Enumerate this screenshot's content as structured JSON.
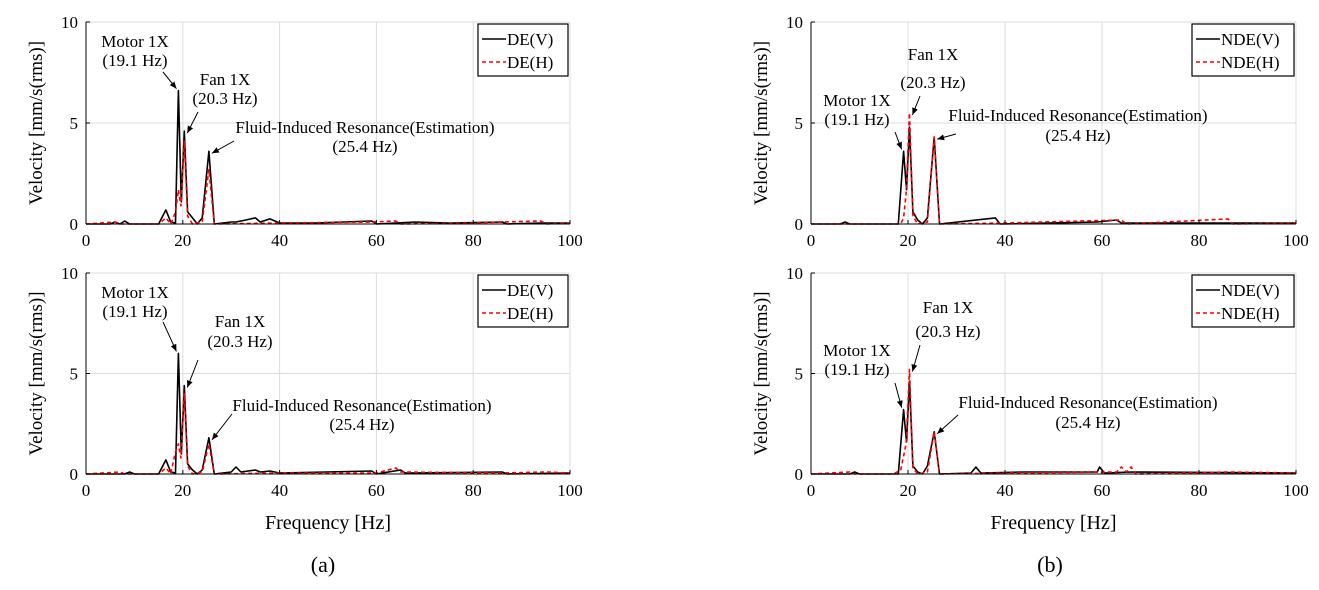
{
  "chart_data": [
    {
      "type": "line",
      "panel": "a-top",
      "xlabel": "",
      "ylabel": "Velocity [mm/s(rms)]",
      "xlim": [
        0,
        100
      ],
      "ylim": [
        0,
        10
      ],
      "xticks": [
        0,
        20,
        40,
        60,
        80,
        100
      ],
      "yticks": [
        0,
        5,
        10
      ],
      "grid": true,
      "legend_position": "top-right",
      "series": [
        {
          "name": "DE(V)",
          "color": "#000000",
          "style": "solid",
          "points": [
            [
              0,
              0
            ],
            [
              5,
              0
            ],
            [
              6,
              0.1
            ],
            [
              7,
              0
            ],
            [
              8,
              0.15
            ],
            [
              9,
              0
            ],
            [
              15,
              0
            ],
            [
              16.5,
              0.7
            ],
            [
              17.5,
              0.1
            ],
            [
              18.5,
              0.05
            ],
            [
              19.1,
              6.6
            ],
            [
              19.7,
              1.1
            ],
            [
              20.3,
              4.6
            ],
            [
              21,
              0.6
            ],
            [
              22,
              0.3
            ],
            [
              23,
              0
            ],
            [
              24,
              0.3
            ],
            [
              25.4,
              3.6
            ],
            [
              26.5,
              0
            ],
            [
              30,
              0.1
            ],
            [
              31,
              0.1
            ],
            [
              33,
              0.2
            ],
            [
              35,
              0.3
            ],
            [
              36,
              0.1
            ],
            [
              38,
              0.25
            ],
            [
              40,
              0.05
            ],
            [
              47,
              0.05
            ],
            [
              59,
              0.15
            ],
            [
              60,
              0
            ],
            [
              68,
              0.1
            ],
            [
              75,
              0.05
            ],
            [
              86,
              0.1
            ],
            [
              87,
              0
            ],
            [
              94,
              0.05
            ],
            [
              100,
              0.05
            ]
          ]
        },
        {
          "name": "DE(H)",
          "color": "#ff0000",
          "style": "dashed",
          "points": [
            [
              0,
              0
            ],
            [
              6,
              0.1
            ],
            [
              7,
              0
            ],
            [
              15,
              0
            ],
            [
              16.5,
              0.3
            ],
            [
              17.5,
              0
            ],
            [
              18.5,
              0.6
            ],
            [
              19.1,
              1.7
            ],
            [
              19.6,
              0.9
            ],
            [
              20.3,
              4.1
            ],
            [
              21,
              0.4
            ],
            [
              22,
              0
            ],
            [
              24,
              0.1
            ],
            [
              25.4,
              2.7
            ],
            [
              26.5,
              0
            ],
            [
              40,
              0.05
            ],
            [
              59,
              0.1
            ],
            [
              64,
              0.15
            ],
            [
              65,
              0
            ],
            [
              80,
              0.05
            ],
            [
              86,
              0.1
            ],
            [
              94,
              0.15
            ],
            [
              95,
              0
            ],
            [
              100,
              0.05
            ]
          ]
        }
      ],
      "annotations": [
        {
          "lines": [
            "Motor 1X",
            "(19.1 Hz)"
          ],
          "x": 19.1,
          "y": 6.6
        },
        {
          "lines": [
            "Fan 1X",
            "(20.3 Hz)"
          ],
          "x": 20.3,
          "y": 4.6
        },
        {
          "lines": [
            "Fluid-Induced Resonance(Estimation)",
            "(25.4 Hz)"
          ],
          "x": 25.4,
          "y": 3.6
        }
      ]
    },
    {
      "type": "line",
      "panel": "a-bottom",
      "xlabel": "Frequency [Hz]",
      "ylabel": "Velocity [mm/s(rms)]",
      "xlim": [
        0,
        100
      ],
      "ylim": [
        0,
        10
      ],
      "xticks": [
        0,
        20,
        40,
        60,
        80,
        100
      ],
      "yticks": [
        0,
        5,
        10
      ],
      "grid": true,
      "legend_position": "top-right",
      "series": [
        {
          "name": "DE(V)",
          "color": "#000000",
          "style": "solid",
          "points": [
            [
              0,
              0
            ],
            [
              8,
              0
            ],
            [
              9,
              0.1
            ],
            [
              10,
              0
            ],
            [
              15,
              0
            ],
            [
              16.5,
              0.7
            ],
            [
              17.5,
              0.1
            ],
            [
              18.5,
              0.05
            ],
            [
              19.1,
              6.0
            ],
            [
              19.7,
              1.0
            ],
            [
              20.3,
              4.4
            ],
            [
              21,
              0.5
            ],
            [
              22,
              0.2
            ],
            [
              23,
              0
            ],
            [
              24,
              0.2
            ],
            [
              25.4,
              1.8
            ],
            [
              26.5,
              0
            ],
            [
              30,
              0.1
            ],
            [
              31,
              0.35
            ],
            [
              32,
              0.1
            ],
            [
              35,
              0.2
            ],
            [
              36,
              0.1
            ],
            [
              38,
              0.15
            ],
            [
              40,
              0.05
            ],
            [
              59,
              0.15
            ],
            [
              60,
              0
            ],
            [
              65,
              0.2
            ],
            [
              66,
              0.05
            ],
            [
              86,
              0.1
            ],
            [
              87,
              0
            ],
            [
              100,
              0.05
            ]
          ]
        },
        {
          "name": "DE(H)",
          "color": "#ff0000",
          "style": "dashed",
          "points": [
            [
              0,
              0
            ],
            [
              7,
              0.1
            ],
            [
              8,
              0
            ],
            [
              15,
              0
            ],
            [
              16.5,
              0.3
            ],
            [
              17.5,
              0
            ],
            [
              18.5,
              1.1
            ],
            [
              19.1,
              1.5
            ],
            [
              19.6,
              0.8
            ],
            [
              20.3,
              4.0
            ],
            [
              21,
              0.4
            ],
            [
              22,
              0
            ],
            [
              24,
              0.1
            ],
            [
              25.4,
              1.5
            ],
            [
              26.5,
              0
            ],
            [
              40,
              0.05
            ],
            [
              60,
              0.05
            ],
            [
              64,
              0.3
            ],
            [
              65,
              0.1
            ],
            [
              86,
              0.05
            ],
            [
              95,
              0.1
            ],
            [
              100,
              0.05
            ]
          ]
        }
      ],
      "annotations": [
        {
          "lines": [
            "Motor 1X",
            "(19.1 Hz)"
          ],
          "x": 19.1,
          "y": 6.0
        },
        {
          "lines": [
            "Fan 1X",
            "(20.3 Hz)"
          ],
          "x": 20.3,
          "y": 4.4
        },
        {
          "lines": [
            "Fluid-Induced Resonance(Estimation)",
            "(25.4 Hz)"
          ],
          "x": 25.4,
          "y": 1.8
        }
      ]
    },
    {
      "type": "line",
      "panel": "b-top",
      "xlabel": "",
      "ylabel": "Velocity [mm/s(rms)]",
      "xlim": [
        0,
        100
      ],
      "ylim": [
        0,
        10
      ],
      "xticks": [
        0,
        20,
        40,
        60,
        80,
        100
      ],
      "yticks": [
        0,
        5,
        10
      ],
      "grid": true,
      "legend_position": "top-right",
      "series": [
        {
          "name": "NDE(V)",
          "color": "#000000",
          "style": "solid",
          "points": [
            [
              0,
              0
            ],
            [
              6,
              0
            ],
            [
              7,
              0.1
            ],
            [
              8,
              0
            ],
            [
              18,
              0
            ],
            [
              19.1,
              3.6
            ],
            [
              19.7,
              1.7
            ],
            [
              20.3,
              4.8
            ],
            [
              21,
              0.6
            ],
            [
              22,
              0.2
            ],
            [
              23,
              0
            ],
            [
              24,
              0.3
            ],
            [
              25.4,
              4.3
            ],
            [
              26.5,
              0
            ],
            [
              38,
              0.3
            ],
            [
              39,
              0
            ],
            [
              59,
              0.1
            ],
            [
              63,
              0.2
            ],
            [
              64,
              0.05
            ],
            [
              100,
              0.05
            ]
          ]
        },
        {
          "name": "NDE(H)",
          "color": "#ff0000",
          "style": "dashed",
          "points": [
            [
              0,
              0
            ],
            [
              15,
              0
            ],
            [
              18.5,
              0
            ],
            [
              19.1,
              0.3
            ],
            [
              19.6,
              1.5
            ],
            [
              20.3,
              5.5
            ],
            [
              21,
              0.4
            ],
            [
              22,
              0
            ],
            [
              24,
              0.1
            ],
            [
              25.4,
              4.3
            ],
            [
              26.5,
              0
            ],
            [
              40,
              0.05
            ],
            [
              64,
              0.2
            ],
            [
              65,
              0
            ],
            [
              86,
              0.25
            ],
            [
              87,
              0
            ],
            [
              100,
              0.05
            ]
          ]
        }
      ],
      "annotations": [
        {
          "lines": [
            "Motor 1X",
            "(19.1 Hz)"
          ],
          "x": 19.1,
          "y": 3.6
        },
        {
          "lines": [
            "Fan 1X",
            "(20.3 Hz)"
          ],
          "x": 20.3,
          "y": 5.5
        },
        {
          "lines": [
            "Fluid-Induced Resonance(Estimation)",
            "(25.4 Hz)"
          ],
          "x": 25.4,
          "y": 4.3
        }
      ]
    },
    {
      "type": "line",
      "panel": "b-bottom",
      "xlabel": "Frequency [Hz]",
      "ylabel": "Velocity [mm/s(rms)]",
      "xlim": [
        0,
        100
      ],
      "ylim": [
        0,
        10
      ],
      "xticks": [
        0,
        20,
        40,
        60,
        80,
        100
      ],
      "yticks": [
        0,
        5,
        10
      ],
      "grid": true,
      "legend_position": "top-right",
      "series": [
        {
          "name": "NDE(V)",
          "color": "#000000",
          "style": "solid",
          "points": [
            [
              0,
              0
            ],
            [
              8,
              0
            ],
            [
              9,
              0.1
            ],
            [
              10,
              0
            ],
            [
              18,
              0
            ],
            [
              19.1,
              3.2
            ],
            [
              19.7,
              1.6
            ],
            [
              20.3,
              4.6
            ],
            [
              21,
              0.4
            ],
            [
              22,
              0.1
            ],
            [
              23,
              0
            ],
            [
              24,
              0.4
            ],
            [
              25.4,
              2.1
            ],
            [
              26.5,
              0
            ],
            [
              33,
              0.05
            ],
            [
              34,
              0.35
            ],
            [
              35,
              0.05
            ],
            [
              44,
              0.1
            ],
            [
              59,
              0.1
            ],
            [
              59.5,
              0.35
            ],
            [
              60.5,
              0.05
            ],
            [
              66,
              0.1
            ],
            [
              100,
              0.05
            ]
          ]
        },
        {
          "name": "NDE(H)",
          "color": "#ff0000",
          "style": "dashed",
          "points": [
            [
              0,
              0
            ],
            [
              8,
              0.1
            ],
            [
              9,
              0
            ],
            [
              17,
              0
            ],
            [
              18.5,
              0.2
            ],
            [
              19.6,
              1.5
            ],
            [
              20.3,
              5.2
            ],
            [
              21,
              0.3
            ],
            [
              22,
              0
            ],
            [
              24,
              0.1
            ],
            [
              25.4,
              2.1
            ],
            [
              26.5,
              0
            ],
            [
              40,
              0.05
            ],
            [
              63,
              0.1
            ],
            [
              64,
              0.35
            ],
            [
              65,
              0.1
            ],
            [
              66,
              0.35
            ],
            [
              67,
              0
            ],
            [
              86,
              0.1
            ],
            [
              100,
              0.05
            ]
          ]
        }
      ],
      "annotations": [
        {
          "lines": [
            "Motor 1X",
            "(19.1 Hz)"
          ],
          "x": 19.1,
          "y": 3.2
        },
        {
          "lines": [
            "Fan 1X",
            "(20.3 Hz)"
          ],
          "x": 20.3,
          "y": 5.2
        },
        {
          "lines": [
            "Fluid-Induced Resonance(Estimation)",
            "(25.4 Hz)"
          ],
          "x": 25.4,
          "y": 2.1
        }
      ]
    }
  ],
  "subfigure_labels": [
    "(a)",
    "(b)"
  ]
}
